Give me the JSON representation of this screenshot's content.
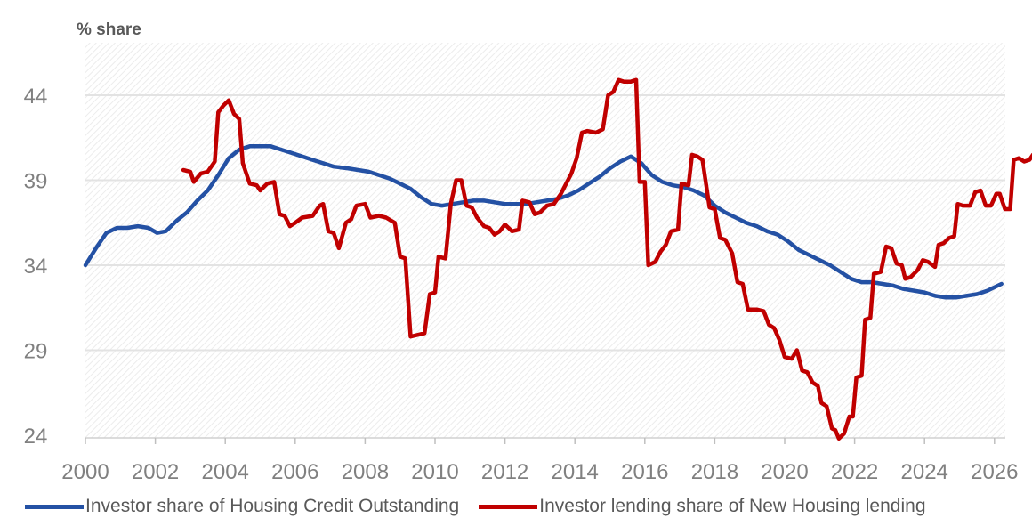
{
  "colors": {
    "investor_credit": "#2451a4",
    "investor_lending": "#c00000",
    "grid": "#e3e3e3",
    "tick_text": "#808080"
  },
  "chart_data": {
    "type": "line",
    "ylabel": "% share",
    "xlim": [
      2000,
      2026.2
    ],
    "ylim": [
      24,
      47
    ],
    "x_ticks": [
      2000,
      2002,
      2004,
      2006,
      2008,
      2010,
      2012,
      2014,
      2016,
      2018,
      2020,
      2022,
      2024,
      2026
    ],
    "y_ticks": [
      24,
      29,
      34,
      39,
      44
    ],
    "grid": true,
    "legend_position": "bottom",
    "series": [
      {
        "name": "Investor share of Housing Credit Outstanding",
        "color": "#2451a4",
        "points": [
          [
            2000.0,
            34.0
          ],
          [
            2000.3,
            35.0
          ],
          [
            2000.6,
            35.9
          ],
          [
            2000.9,
            36.2
          ],
          [
            2001.2,
            36.2
          ],
          [
            2001.5,
            36.3
          ],
          [
            2001.8,
            36.2
          ],
          [
            2002.05,
            35.9
          ],
          [
            2002.3,
            36.0
          ],
          [
            2002.6,
            36.6
          ],
          [
            2002.9,
            37.1
          ],
          [
            2003.2,
            37.8
          ],
          [
            2003.5,
            38.4
          ],
          [
            2003.8,
            39.3
          ],
          [
            2004.1,
            40.3
          ],
          [
            2004.4,
            40.8
          ],
          [
            2004.7,
            41.0
          ],
          [
            2005.0,
            41.0
          ],
          [
            2005.3,
            41.0
          ],
          [
            2005.6,
            40.8
          ],
          [
            2005.9,
            40.6
          ],
          [
            2006.2,
            40.4
          ],
          [
            2006.5,
            40.2
          ],
          [
            2006.8,
            40.0
          ],
          [
            2007.1,
            39.8
          ],
          [
            2007.5,
            39.7
          ],
          [
            2007.8,
            39.6
          ],
          [
            2008.1,
            39.5
          ],
          [
            2008.4,
            39.3
          ],
          [
            2008.7,
            39.1
          ],
          [
            2009.0,
            38.8
          ],
          [
            2009.3,
            38.5
          ],
          [
            2009.6,
            38.0
          ],
          [
            2009.9,
            37.6
          ],
          [
            2010.2,
            37.5
          ],
          [
            2010.5,
            37.6
          ],
          [
            2010.8,
            37.7
          ],
          [
            2011.1,
            37.8
          ],
          [
            2011.4,
            37.8
          ],
          [
            2011.7,
            37.7
          ],
          [
            2012.0,
            37.6
          ],
          [
            2012.3,
            37.6
          ],
          [
            2012.6,
            37.6
          ],
          [
            2012.9,
            37.7
          ],
          [
            2013.2,
            37.8
          ],
          [
            2013.5,
            37.9
          ],
          [
            2013.8,
            38.1
          ],
          [
            2014.1,
            38.4
          ],
          [
            2014.4,
            38.8
          ],
          [
            2014.7,
            39.2
          ],
          [
            2015.0,
            39.7
          ],
          [
            2015.3,
            40.1
          ],
          [
            2015.6,
            40.4
          ],
          [
            2015.9,
            40.0
          ],
          [
            2016.2,
            39.3
          ],
          [
            2016.5,
            38.9
          ],
          [
            2016.8,
            38.7
          ],
          [
            2017.1,
            38.6
          ],
          [
            2017.4,
            38.4
          ],
          [
            2017.7,
            38.1
          ],
          [
            2018.0,
            37.5
          ],
          [
            2018.3,
            37.1
          ],
          [
            2018.6,
            36.8
          ],
          [
            2018.9,
            36.5
          ],
          [
            2019.2,
            36.3
          ],
          [
            2019.5,
            36.0
          ],
          [
            2019.8,
            35.8
          ],
          [
            2020.1,
            35.4
          ],
          [
            2020.4,
            34.9
          ],
          [
            2020.7,
            34.6
          ],
          [
            2021.0,
            34.3
          ],
          [
            2021.3,
            34.0
          ],
          [
            2021.6,
            33.6
          ],
          [
            2021.9,
            33.2
          ],
          [
            2022.2,
            33.0
          ],
          [
            2022.5,
            33.0
          ],
          [
            2022.8,
            32.9
          ],
          [
            2023.1,
            32.8
          ],
          [
            2023.4,
            32.6
          ],
          [
            2023.7,
            32.5
          ],
          [
            2024.0,
            32.4
          ],
          [
            2024.3,
            32.2
          ],
          [
            2024.6,
            32.1
          ],
          [
            2024.9,
            32.1
          ],
          [
            2025.2,
            32.2
          ],
          [
            2025.5,
            32.3
          ],
          [
            2025.8,
            32.5
          ],
          [
            2026.1,
            32.8
          ],
          [
            2026.2,
            32.9
          ]
        ]
      },
      {
        "name": "Investor lending share of New Housing lending",
        "color": "#c00000",
        "points": [
          [
            2002.8,
            39.6
          ],
          [
            2003.0,
            39.5
          ],
          [
            2003.1,
            38.9
          ],
          [
            2003.3,
            39.4
          ],
          [
            2003.5,
            39.5
          ],
          [
            2003.7,
            40.1
          ],
          [
            2003.8,
            43.0
          ],
          [
            2003.95,
            43.4
          ],
          [
            2004.1,
            43.7
          ],
          [
            2004.25,
            42.9
          ],
          [
            2004.4,
            42.6
          ],
          [
            2004.5,
            40.0
          ],
          [
            2004.7,
            38.8
          ],
          [
            2004.9,
            38.7
          ],
          [
            2005.0,
            38.4
          ],
          [
            2005.2,
            38.8
          ],
          [
            2005.4,
            38.9
          ],
          [
            2005.55,
            37.0
          ],
          [
            2005.7,
            36.9
          ],
          [
            2005.85,
            36.3
          ],
          [
            2006.0,
            36.5
          ],
          [
            2006.2,
            36.8
          ],
          [
            2006.5,
            36.9
          ],
          [
            2006.7,
            37.5
          ],
          [
            2006.8,
            37.6
          ],
          [
            2006.95,
            36.0
          ],
          [
            2007.1,
            35.9
          ],
          [
            2007.25,
            35.0
          ],
          [
            2007.45,
            36.5
          ],
          [
            2007.6,
            36.7
          ],
          [
            2007.75,
            37.5
          ],
          [
            2008.0,
            37.6
          ],
          [
            2008.15,
            36.8
          ],
          [
            2008.4,
            36.9
          ],
          [
            2008.6,
            36.8
          ],
          [
            2008.85,
            36.5
          ],
          [
            2009.0,
            34.5
          ],
          [
            2009.15,
            34.4
          ],
          [
            2009.3,
            29.8
          ],
          [
            2009.5,
            29.9
          ],
          [
            2009.7,
            30.0
          ],
          [
            2009.85,
            32.3
          ],
          [
            2010.0,
            32.4
          ],
          [
            2010.1,
            34.5
          ],
          [
            2010.3,
            34.4
          ],
          [
            2010.45,
            37.6
          ],
          [
            2010.6,
            39.0
          ],
          [
            2010.75,
            39.0
          ],
          [
            2010.9,
            37.5
          ],
          [
            2011.05,
            37.4
          ],
          [
            2011.2,
            36.8
          ],
          [
            2011.4,
            36.3
          ],
          [
            2011.55,
            36.2
          ],
          [
            2011.7,
            35.8
          ],
          [
            2011.85,
            36.0
          ],
          [
            2012.0,
            36.4
          ],
          [
            2012.2,
            36.0
          ],
          [
            2012.4,
            36.1
          ],
          [
            2012.5,
            37.8
          ],
          [
            2012.7,
            37.7
          ],
          [
            2012.85,
            37.0
          ],
          [
            2013.0,
            37.1
          ],
          [
            2013.2,
            37.5
          ],
          [
            2013.4,
            37.6
          ],
          [
            2013.6,
            38.2
          ],
          [
            2013.75,
            38.8
          ],
          [
            2013.9,
            39.4
          ],
          [
            2014.05,
            40.3
          ],
          [
            2014.2,
            41.8
          ],
          [
            2014.35,
            41.9
          ],
          [
            2014.6,
            41.8
          ],
          [
            2014.8,
            42.0
          ],
          [
            2014.95,
            44.0
          ],
          [
            2015.1,
            44.2
          ],
          [
            2015.25,
            44.9
          ],
          [
            2015.4,
            44.8
          ],
          [
            2015.6,
            44.8
          ],
          [
            2015.75,
            44.9
          ],
          [
            2015.85,
            38.9
          ],
          [
            2016.0,
            38.9
          ],
          [
            2016.1,
            34.0
          ],
          [
            2016.3,
            34.2
          ],
          [
            2016.45,
            34.8
          ],
          [
            2016.6,
            35.2
          ],
          [
            2016.75,
            36.0
          ],
          [
            2016.95,
            36.1
          ],
          [
            2017.05,
            38.8
          ],
          [
            2017.25,
            38.7
          ],
          [
            2017.35,
            40.5
          ],
          [
            2017.5,
            40.4
          ],
          [
            2017.65,
            40.2
          ],
          [
            2017.85,
            37.4
          ],
          [
            2018.0,
            37.3
          ],
          [
            2018.15,
            35.6
          ],
          [
            2018.3,
            35.5
          ],
          [
            2018.5,
            34.7
          ],
          [
            2018.65,
            33.0
          ],
          [
            2018.8,
            32.9
          ],
          [
            2018.95,
            31.4
          ],
          [
            2019.2,
            31.4
          ],
          [
            2019.4,
            31.3
          ],
          [
            2019.55,
            30.5
          ],
          [
            2019.7,
            30.3
          ],
          [
            2019.85,
            29.6
          ],
          [
            2020.0,
            28.6
          ],
          [
            2020.2,
            28.5
          ],
          [
            2020.35,
            29.0
          ],
          [
            2020.5,
            27.8
          ],
          [
            2020.65,
            27.7
          ],
          [
            2020.8,
            27.1
          ],
          [
            2020.95,
            26.9
          ],
          [
            2021.05,
            25.9
          ],
          [
            2021.2,
            25.7
          ],
          [
            2021.35,
            24.4
          ],
          [
            2021.45,
            24.3
          ],
          [
            2021.55,
            23.8
          ],
          [
            2021.7,
            24.1
          ],
          [
            2021.85,
            25.1
          ],
          [
            2021.95,
            25.1
          ],
          [
            2022.05,
            27.4
          ],
          [
            2022.2,
            27.5
          ],
          [
            2022.3,
            30.8
          ],
          [
            2022.45,
            30.9
          ],
          [
            2022.55,
            33.5
          ],
          [
            2022.75,
            33.6
          ],
          [
            2022.9,
            35.1
          ],
          [
            2023.05,
            35.0
          ],
          [
            2023.2,
            34.1
          ],
          [
            2023.35,
            34.0
          ],
          [
            2023.45,
            33.2
          ],
          [
            2023.6,
            33.3
          ],
          [
            2023.8,
            33.7
          ],
          [
            2023.95,
            34.3
          ],
          [
            2024.1,
            34.2
          ],
          [
            2024.3,
            33.9
          ],
          [
            2024.4,
            35.2
          ],
          [
            2024.55,
            35.3
          ],
          [
            2024.7,
            35.6
          ],
          [
            2024.85,
            35.7
          ],
          [
            2024.95,
            37.6
          ],
          [
            2025.1,
            37.5
          ],
          [
            2025.3,
            37.5
          ],
          [
            2025.45,
            38.3
          ],
          [
            2025.6,
            38.4
          ],
          [
            2025.75,
            37.5
          ],
          [
            2025.9,
            37.5
          ],
          [
            2026.05,
            38.2
          ],
          [
            2026.15,
            38.2
          ],
          [
            2026.3,
            37.3
          ],
          [
            2026.45,
            37.3
          ],
          [
            2026.55,
            40.2
          ],
          [
            2026.7,
            40.3
          ],
          [
            2026.85,
            40.1
          ],
          [
            2027.0,
            40.2
          ],
          [
            2027.1,
            40.5
          ]
        ]
      }
    ]
  }
}
